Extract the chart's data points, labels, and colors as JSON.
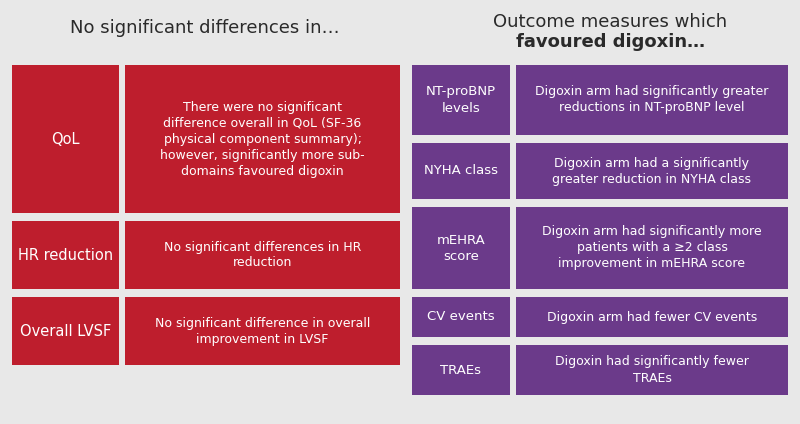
{
  "bg_color": "#e8e8e8",
  "red_color": "#be1e2d",
  "purple_color": "#6b3a8a",
  "white": "#ffffff",
  "dark_text": "#2a2a2a",
  "left_header": "No significant differences in…",
  "right_header_line1": "Outcome measures which",
  "right_header_line2": "favoured digoxin…",
  "left_rows": [
    {
      "label": "QoL",
      "desc": "There were no significant\ndifference overall in QoL (SF-36\nphysical component summary);\nhowever, significantly more sub-\ndomains favoured digoxin"
    },
    {
      "label": "HR reduction",
      "desc": "No significant differences in HR\nreduction"
    },
    {
      "label": "Overall LVSF",
      "desc": "No significant difference in overall\nimprovement in LVSF"
    }
  ],
  "right_rows": [
    {
      "label": "NT-proBNP\nlevels",
      "desc": "Digoxin arm had significantly greater\nreductions in NT-proBNP level"
    },
    {
      "label": "NYHA class",
      "desc": "Digoxin arm had a significantly\ngreater reduction in NYHA class"
    },
    {
      "label": "mEHRA\nscore",
      "desc": "Digoxin arm had significantly more\npatients with a ≥2 class\nimprovement in mEHRA score"
    },
    {
      "label": "CV events",
      "desc": "Digoxin arm had fewer CV events"
    },
    {
      "label": "TRAEs",
      "desc": "Digoxin had significantly fewer\nTRAEs"
    }
  ]
}
